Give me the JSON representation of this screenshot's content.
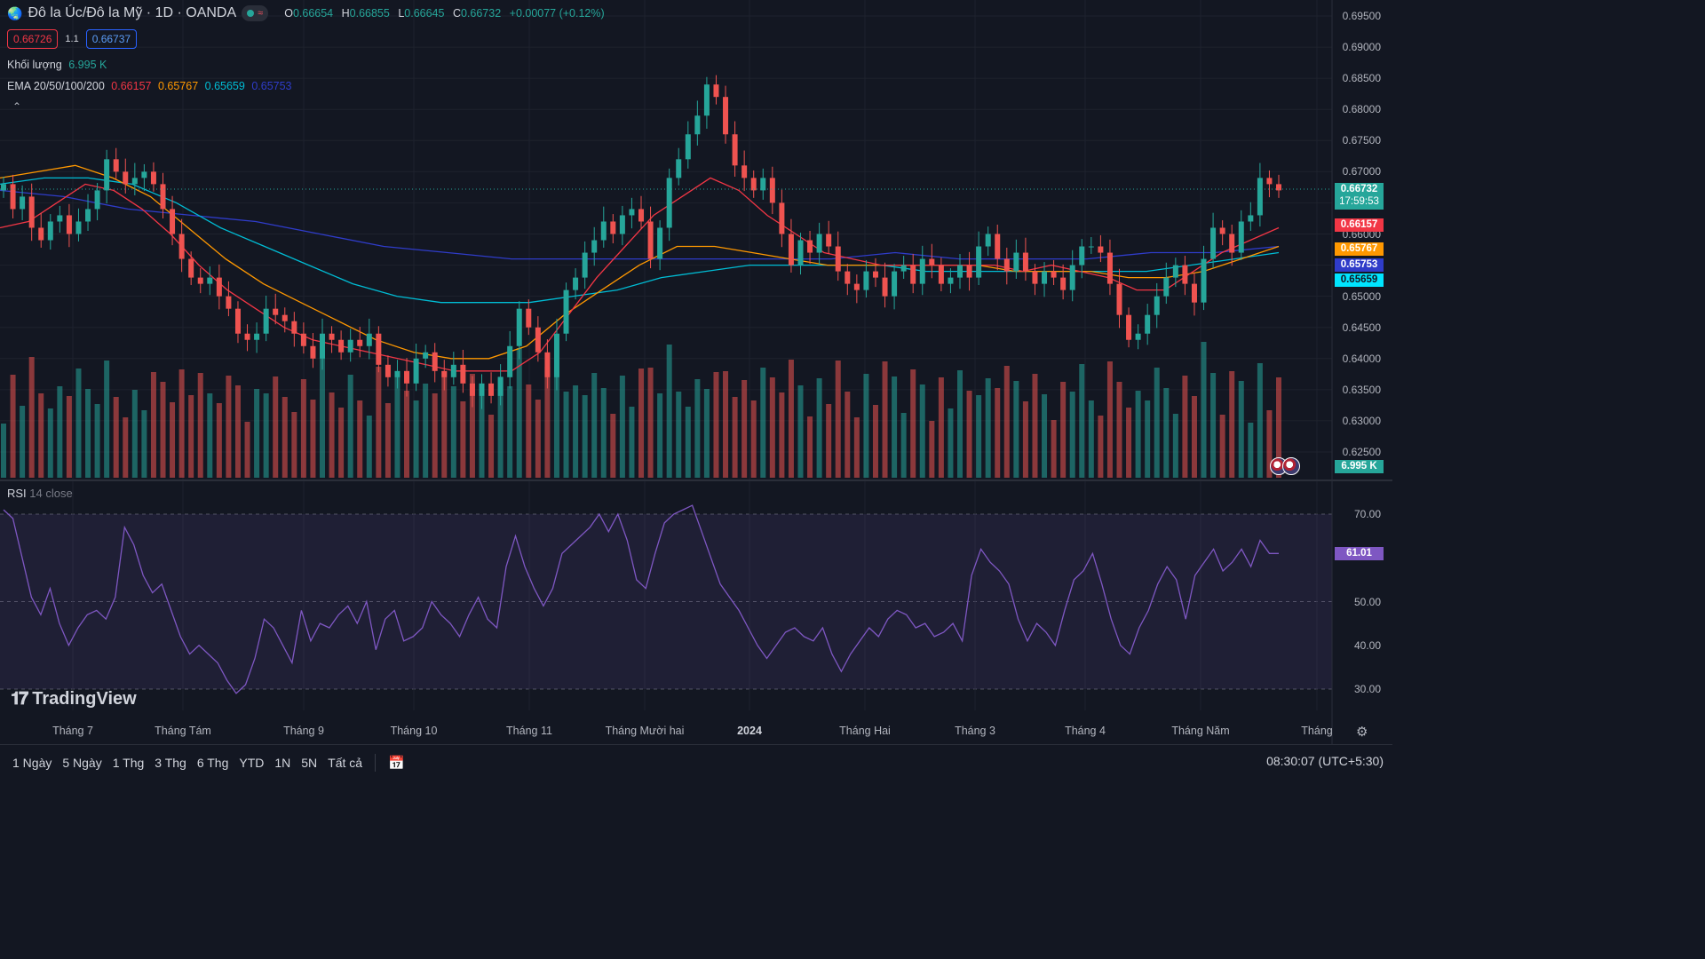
{
  "header": {
    "symbol_title": "Đô la Úc/Đô la Mỹ · 1D · OANDA",
    "ohlc": {
      "o_label": "O",
      "o": "0.66654",
      "h_label": "H",
      "h": "0.66855",
      "l_label": "L",
      "l": "0.66645",
      "c_label": "C",
      "c": "0.66732",
      "change": "+0.00077 (+0.12%)"
    },
    "sell_price": "0.66726",
    "spread": "1.1",
    "buy_price": "0.66737"
  },
  "indicators": {
    "volume_label": "Khối lượng",
    "volume_value": "6.995 K",
    "ema_label": "EMA 20/50/100/200",
    "ema20": "0.66157",
    "ema50": "0.65767",
    "ema100": "0.65659",
    "ema200": "0.65753",
    "collapse_icon": "chevron-up-icon"
  },
  "rsi": {
    "label": "RSI",
    "sub": "14 close",
    "value": "61.01"
  },
  "colors": {
    "up": "#26a69a",
    "down": "#ef5350",
    "ema20": "#f23645",
    "ema50": "#ff9800",
    "ema100": "#00bcd4",
    "ema200": "#2f3cc9",
    "rsi_line": "#7e57c2",
    "background": "#131722"
  },
  "price_axis": [
    "0.69500",
    "0.69000",
    "0.68500",
    "0.68000",
    "0.67500",
    "0.67000",
    "0.66500",
    "0.66000",
    "0.65500",
    "0.65000",
    "0.64500",
    "0.64000",
    "0.63500",
    "0.63000",
    "0.62500"
  ],
  "rsi_axis": [
    "70.00",
    "50.00",
    "40.00",
    "30.00"
  ],
  "price_tags": {
    "last": "0.66732",
    "countdown": "17:59:53",
    "ema20": "0.66157",
    "ema50": "0.65767",
    "ema200": "0.65753",
    "ema100": "0.65659",
    "volume": "6.995 K"
  },
  "time_axis": [
    "Tháng 7",
    "Tháng Tám",
    "Tháng 9",
    "Tháng 10",
    "Tháng 11",
    "Tháng Mười hai",
    "2024",
    "Tháng Hai",
    "Tháng 3",
    "Tháng 4",
    "Tháng Năm",
    "Tháng"
  ],
  "logo_text": "TradingView",
  "range_buttons": [
    "1 Ngày",
    "5 Ngày",
    "1 Thg",
    "3 Thg",
    "6 Thg",
    "YTD",
    "1N",
    "5N",
    "Tất cả"
  ],
  "clock": "08:30:07 (UTC+5:30)",
  "chart_data": {
    "type": "candlestick",
    "y_axis_range": [
      0.6225,
      0.6965
    ],
    "rsi_range": [
      28,
      73
    ],
    "rsi_levels": [
      70,
      50,
      30
    ],
    "price_path": [
      0.668,
      0.664,
      0.666,
      0.661,
      0.659,
      0.662,
      0.663,
      0.66,
      0.662,
      0.664,
      0.667,
      0.672,
      0.67,
      0.668,
      0.669,
      0.67,
      0.668,
      0.664,
      0.66,
      0.656,
      0.653,
      0.652,
      0.653,
      0.65,
      0.648,
      0.644,
      0.643,
      0.644,
      0.648,
      0.647,
      0.646,
      0.644,
      0.642,
      0.64,
      0.644,
      0.643,
      0.641,
      0.643,
      0.642,
      0.644,
      0.639,
      0.637,
      0.638,
      0.636,
      0.64,
      0.641,
      0.638,
      0.637,
      0.639,
      0.636,
      0.634,
      0.636,
      0.634,
      0.637,
      0.642,
      0.648,
      0.645,
      0.641,
      0.637,
      0.644,
      0.651,
      0.653,
      0.657,
      0.659,
      0.662,
      0.66,
      0.663,
      0.664,
      0.662,
      0.656,
      0.661,
      0.669,
      0.672,
      0.676,
      0.679,
      0.684,
      0.682,
      0.676,
      0.671,
      0.669,
      0.667,
      0.669,
      0.665,
      0.66,
      0.655,
      0.659,
      0.657,
      0.66,
      0.658,
      0.654,
      0.652,
      0.651,
      0.654,
      0.653,
      0.65,
      0.654,
      0.655,
      0.652,
      0.656,
      0.655,
      0.652,
      0.653,
      0.655,
      0.653,
      0.658,
      0.66,
      0.656,
      0.654,
      0.657,
      0.654,
      0.652,
      0.654,
      0.653,
      0.651,
      0.655,
      0.658,
      0.658,
      0.657,
      0.652,
      0.647,
      0.643,
      0.644,
      0.647,
      0.65,
      0.653,
      0.655,
      0.652,
      0.649,
      0.656,
      0.661,
      0.66,
      0.657,
      0.662,
      0.663,
      0.669,
      0.668,
      0.667
    ],
    "rsi_path": [
      71,
      69,
      60,
      51,
      47,
      53,
      45,
      40,
      44,
      47,
      48,
      46,
      51,
      67,
      63,
      56,
      52,
      54,
      48,
      42,
      38,
      40,
      38,
      36,
      32,
      29,
      31,
      37,
      46,
      44,
      40,
      36,
      48,
      41,
      45,
      44,
      47,
      49,
      45,
      50,
      39,
      46,
      48,
      41,
      42,
      44,
      50,
      47,
      45,
      42,
      47,
      51,
      46,
      44,
      58,
      65,
      58,
      53,
      49,
      53,
      61,
      63,
      65,
      67,
      70,
      66,
      70,
      64,
      55,
      53,
      61,
      68,
      70,
      71,
      72,
      66,
      60,
      54,
      51,
      48,
      44,
      40,
      37,
      40,
      43,
      44,
      42,
      41,
      44,
      38,
      34,
      38,
      41,
      44,
      42,
      46,
      48,
      47,
      44,
      45,
      42,
      43,
      45,
      41,
      56,
      62,
      59,
      57,
      54,
      46,
      41,
      45,
      43,
      40,
      48,
      55,
      57,
      61,
      54,
      46,
      40,
      38,
      44,
      48,
      54,
      58,
      55,
      46,
      56,
      59,
      62,
      57,
      59,
      62,
      58,
      64,
      61,
      61
    ],
    "ema20_path": [
      0.661,
      0.662,
      0.665,
      0.668,
      0.667,
      0.664,
      0.66,
      0.655,
      0.651,
      0.648,
      0.645,
      0.643,
      0.642,
      0.641,
      0.64,
      0.639,
      0.638,
      0.638,
      0.638,
      0.641,
      0.647,
      0.653,
      0.658,
      0.663,
      0.666,
      0.669,
      0.667,
      0.663,
      0.66,
      0.657,
      0.656,
      0.655,
      0.655,
      0.655,
      0.655,
      0.655,
      0.654,
      0.655,
      0.654,
      0.653,
      0.651,
      0.651,
      0.654,
      0.657,
      0.659,
      0.661
    ],
    "ema50_path": [
      0.669,
      0.67,
      0.671,
      0.669,
      0.666,
      0.661,
      0.656,
      0.652,
      0.649,
      0.646,
      0.643,
      0.641,
      0.64,
      0.64,
      0.642,
      0.647,
      0.651,
      0.655,
      0.658,
      0.658,
      0.657,
      0.656,
      0.655,
      0.655,
      0.655,
      0.655,
      0.655,
      0.654,
      0.654,
      0.654,
      0.653,
      0.653,
      0.654,
      0.656,
      0.658
    ],
    "ema100_path": [
      0.668,
      0.669,
      0.669,
      0.668,
      0.665,
      0.661,
      0.658,
      0.655,
      0.652,
      0.65,
      0.649,
      0.649,
      0.649,
      0.65,
      0.651,
      0.653,
      0.654,
      0.655,
      0.655,
      0.655,
      0.655,
      0.654,
      0.654,
      0.654,
      0.654,
      0.654,
      0.654,
      0.655,
      0.656,
      0.657
    ],
    "ema200_path": [
      0.667,
      0.666,
      0.664,
      0.663,
      0.662,
      0.66,
      0.658,
      0.657,
      0.656,
      0.656,
      0.656,
      0.656,
      0.656,
      0.656,
      0.657,
      0.656,
      0.656,
      0.656,
      0.657,
      0.657,
      0.658
    ]
  }
}
